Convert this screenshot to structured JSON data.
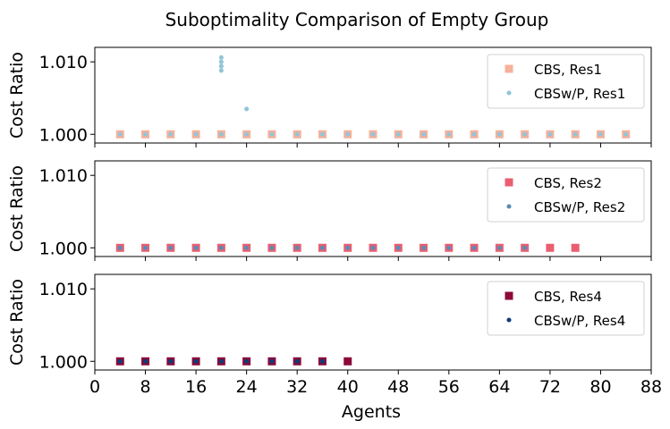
{
  "figure": {
    "title": "Suboptimality Comparison of Empty Group",
    "xlabel": "Agents",
    "ylabel": "Cost Ratio"
  },
  "chart_data": [
    {
      "type": "scatter",
      "ylabel": "Cost Ratio",
      "xlabel": "",
      "xlim": [
        0,
        88
      ],
      "ylim": [
        0.9988,
        1.012
      ],
      "xticks": [
        0,
        8,
        16,
        24,
        32,
        40,
        48,
        56,
        64,
        72,
        80,
        88
      ],
      "yticks": [
        1.0,
        1.01
      ],
      "ytick_labels": [
        "1.000",
        "1.010"
      ],
      "show_xtick_labels": false,
      "legend_position": "top-right",
      "series": [
        {
          "name": "CBS, Res1",
          "marker": "square",
          "color": "#f7b09a",
          "points": [
            [
              4,
              1.0
            ],
            [
              8,
              1.0
            ],
            [
              12,
              1.0
            ],
            [
              16,
              1.0
            ],
            [
              20,
              1.0
            ],
            [
              24,
              1.0
            ],
            [
              28,
              1.0
            ],
            [
              32,
              1.0
            ],
            [
              36,
              1.0
            ],
            [
              40,
              1.0
            ],
            [
              44,
              1.0
            ],
            [
              48,
              1.0
            ],
            [
              52,
              1.0
            ],
            [
              56,
              1.0
            ],
            [
              60,
              1.0
            ],
            [
              64,
              1.0
            ],
            [
              68,
              1.0
            ],
            [
              72,
              1.0
            ],
            [
              76,
              1.0
            ],
            [
              80,
              1.0
            ],
            [
              84,
              1.0
            ]
          ]
        },
        {
          "name": "CBSw/P, Res1",
          "marker": "circle",
          "color": "#92c5d8",
          "points": [
            [
              4,
              1.0
            ],
            [
              8,
              1.0
            ],
            [
              12,
              1.0
            ],
            [
              16,
              1.0
            ],
            [
              20,
              1.0
            ],
            [
              20,
              1.0088
            ],
            [
              20,
              1.0094
            ],
            [
              20,
              1.01
            ],
            [
              20,
              1.0106
            ],
            [
              24,
              1.0
            ],
            [
              24,
              1.0035
            ],
            [
              28,
              1.0
            ],
            [
              32,
              1.0
            ],
            [
              36,
              1.0
            ],
            [
              40,
              1.0
            ],
            [
              44,
              1.0
            ],
            [
              48,
              1.0
            ],
            [
              52,
              1.0
            ],
            [
              56,
              1.0
            ],
            [
              60,
              1.0
            ],
            [
              64,
              1.0
            ],
            [
              68,
              1.0
            ],
            [
              72,
              1.0
            ],
            [
              76,
              1.0
            ],
            [
              80,
              1.0
            ],
            [
              84,
              1.0
            ]
          ]
        }
      ]
    },
    {
      "type": "scatter",
      "ylabel": "Cost Ratio",
      "xlabel": "",
      "xlim": [
        0,
        88
      ],
      "ylim": [
        0.9988,
        1.012
      ],
      "xticks": [
        0,
        8,
        16,
        24,
        32,
        40,
        48,
        56,
        64,
        72,
        80,
        88
      ],
      "yticks": [
        1.0,
        1.01
      ],
      "ytick_labels": [
        "1.000",
        "1.010"
      ],
      "show_xtick_labels": false,
      "legend_position": "top-right",
      "series": [
        {
          "name": "CBS, Res2",
          "marker": "square",
          "color": "#ea5f70",
          "points": [
            [
              4,
              1.0
            ],
            [
              8,
              1.0
            ],
            [
              12,
              1.0
            ],
            [
              16,
              1.0
            ],
            [
              20,
              1.0
            ],
            [
              24,
              1.0
            ],
            [
              28,
              1.0
            ],
            [
              32,
              1.0
            ],
            [
              36,
              1.0
            ],
            [
              40,
              1.0
            ],
            [
              44,
              1.0
            ],
            [
              48,
              1.0
            ],
            [
              52,
              1.0
            ],
            [
              56,
              1.0
            ],
            [
              60,
              1.0
            ],
            [
              64,
              1.0
            ],
            [
              68,
              1.0
            ],
            [
              72,
              1.0
            ],
            [
              76,
              1.0
            ]
          ]
        },
        {
          "name": "CBSw/P, Res2",
          "marker": "circle",
          "color": "#5b8bb7",
          "points": [
            [
              4,
              1.0
            ],
            [
              8,
              1.0
            ],
            [
              12,
              1.0
            ],
            [
              16,
              1.0
            ],
            [
              20,
              1.0
            ],
            [
              24,
              1.0
            ],
            [
              28,
              1.0
            ],
            [
              32,
              1.0
            ],
            [
              36,
              1.0
            ],
            [
              40,
              1.0
            ],
            [
              44,
              1.0
            ],
            [
              48,
              1.0
            ],
            [
              52,
              1.0
            ],
            [
              56,
              1.0
            ],
            [
              60,
              1.0
            ],
            [
              64,
              1.0
            ],
            [
              68,
              1.0
            ]
          ]
        }
      ]
    },
    {
      "type": "scatter",
      "ylabel": "Cost Ratio",
      "xlabel": "Agents",
      "xlim": [
        0,
        88
      ],
      "ylim": [
        0.9988,
        1.012
      ],
      "xticks": [
        0,
        8,
        16,
        24,
        32,
        40,
        48,
        56,
        64,
        72,
        80,
        88
      ],
      "yticks": [
        1.0,
        1.01
      ],
      "ytick_labels": [
        "1.000",
        "1.010"
      ],
      "show_xtick_labels": true,
      "legend_position": "top-right",
      "series": [
        {
          "name": "CBS, Res4",
          "marker": "square",
          "color": "#8b0a3a",
          "points": [
            [
              4,
              1.0
            ],
            [
              8,
              1.0
            ],
            [
              12,
              1.0
            ],
            [
              16,
              1.0
            ],
            [
              20,
              1.0
            ],
            [
              24,
              1.0
            ],
            [
              28,
              1.0
            ],
            [
              32,
              1.0
            ],
            [
              36,
              1.0
            ],
            [
              40,
              1.0
            ]
          ]
        },
        {
          "name": "CBSw/P, Res4",
          "marker": "circle",
          "color": "#0b3d7c",
          "points": [
            [
              4,
              1.0
            ],
            [
              8,
              1.0
            ],
            [
              12,
              1.0
            ],
            [
              16,
              1.0
            ],
            [
              20,
              1.0
            ],
            [
              24,
              1.0
            ],
            [
              28,
              1.0
            ],
            [
              32,
              1.0
            ],
            [
              36,
              1.0
            ]
          ]
        }
      ]
    }
  ]
}
